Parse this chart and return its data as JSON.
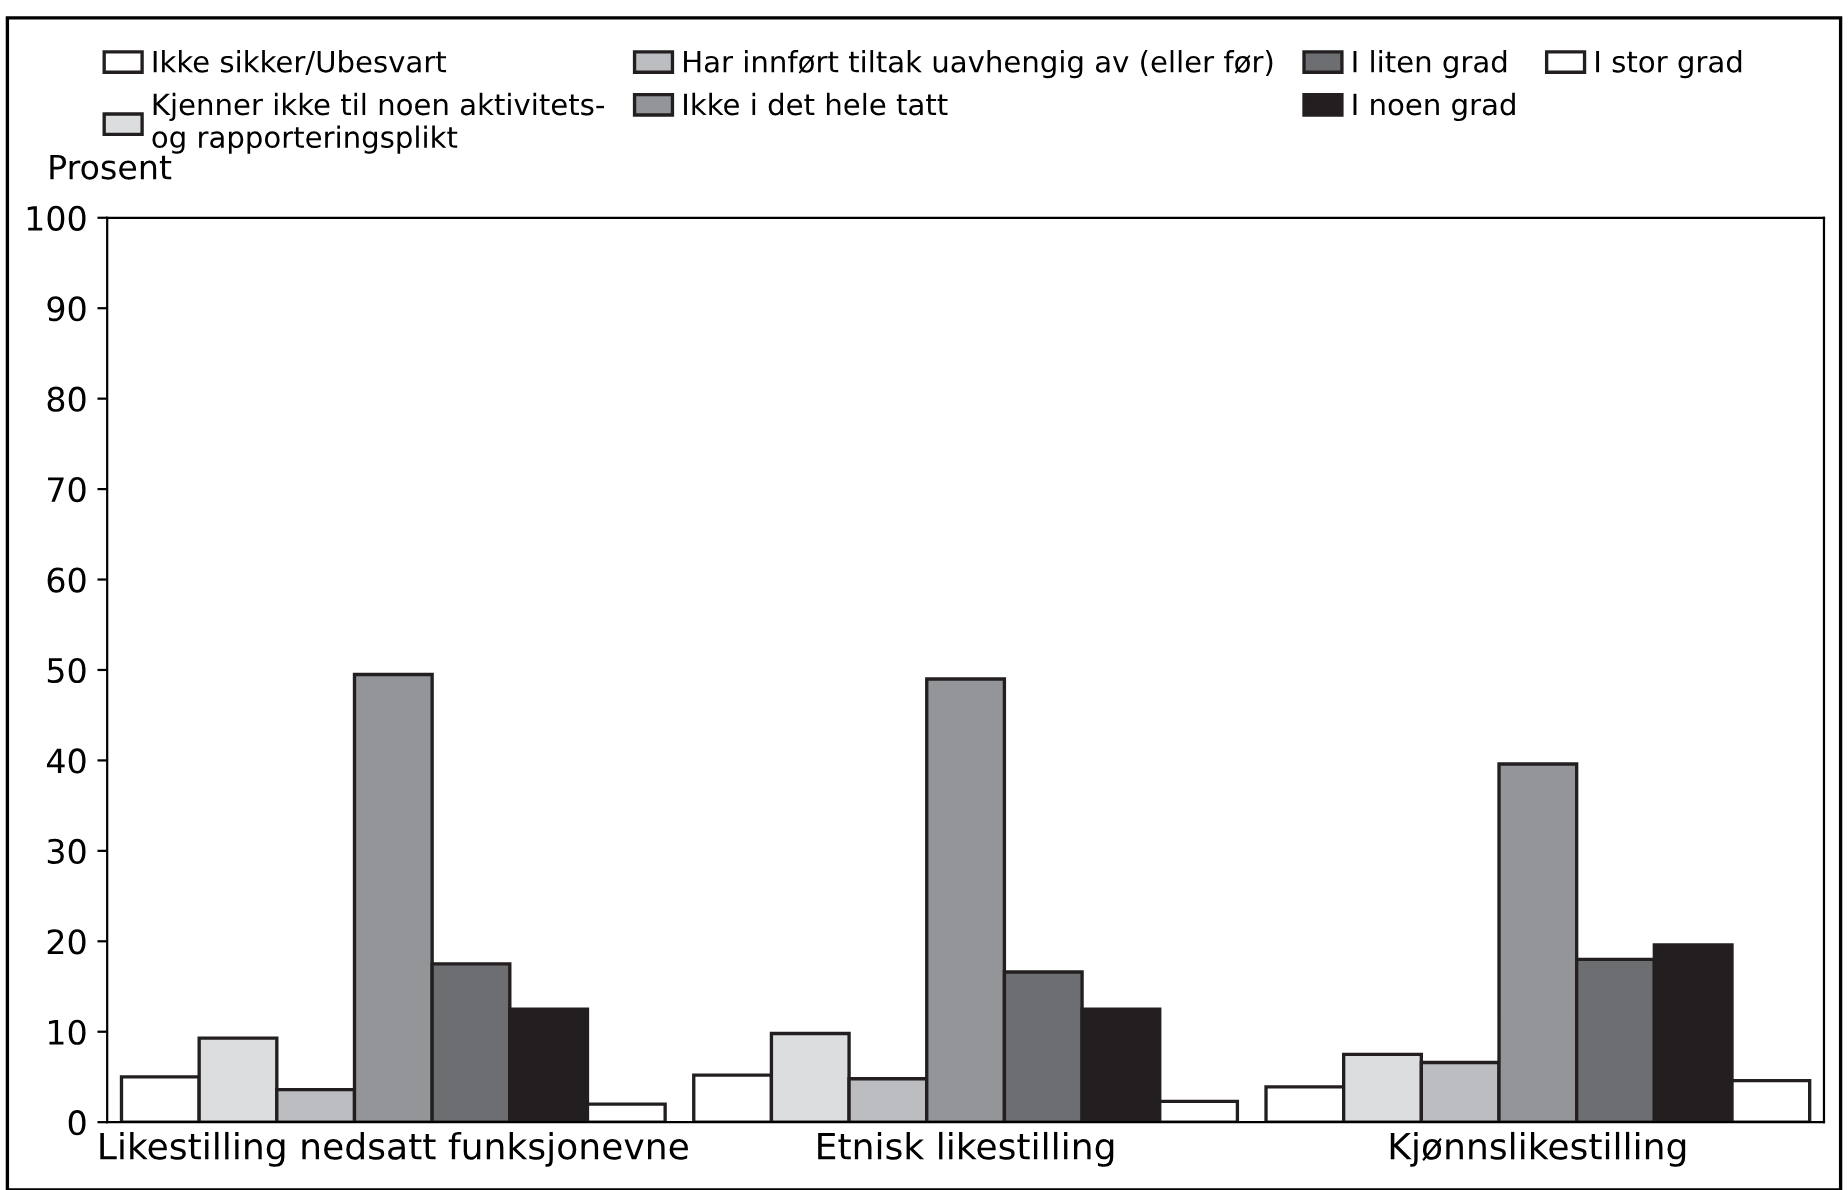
{
  "chart_data": {
    "type": "bar",
    "ylabel": "Prosent",
    "categories": [
      "Likestilling nedsatt funksjonevne",
      "Etnisk likestilling",
      "Kjønnslikestilling"
    ],
    "series": [
      {
        "name": "Ikke sikker/Ubesvart",
        "color": "#ffffff",
        "values": [
          5.0,
          5.2,
          3.9
        ]
      },
      {
        "name": "Kjenner ikke til noen aktivitets-\nog rapporteringsplikt",
        "color": "#dcdddf",
        "values": [
          9.3,
          9.8,
          7.5
        ]
      },
      {
        "name": "Har innført tiltak uavhengig av (eller før)",
        "color": "#bcbdc0",
        "values": [
          3.6,
          4.8,
          6.6
        ]
      },
      {
        "name": "Ikke i det hele tatt",
        "color": "#939598",
        "values": [
          49.5,
          49.0,
          39.6
        ]
      },
      {
        "name": "I liten grad",
        "color": "#6d6e71",
        "values": [
          17.5,
          16.6,
          18.0
        ]
      },
      {
        "name": "I noen grad",
        "color": "#231f20",
        "values": [
          12.5,
          12.5,
          19.6
        ]
      },
      {
        "name": "I stor grad",
        "color": "#ffffff",
        "values": [
          2.0,
          2.3,
          4.6
        ]
      }
    ],
    "ylim": [
      0,
      100
    ],
    "yticks": [
      0,
      10,
      20,
      30,
      40,
      50,
      60,
      70,
      80,
      90,
      100
    ],
    "grid": false,
    "legend": "top"
  }
}
